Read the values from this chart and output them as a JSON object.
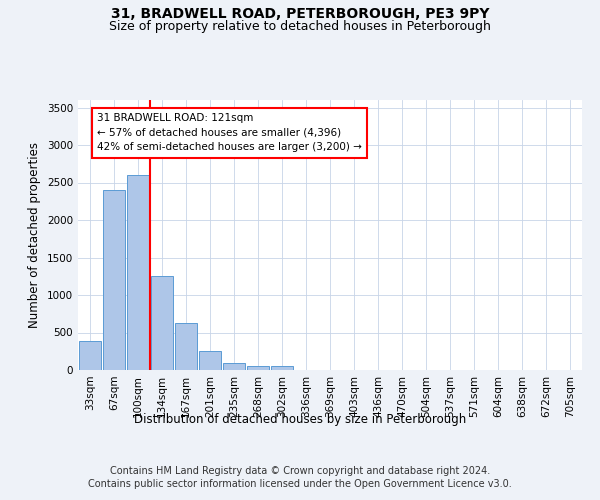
{
  "title": "31, BRADWELL ROAD, PETERBOROUGH, PE3 9PY",
  "subtitle": "Size of property relative to detached houses in Peterborough",
  "xlabel": "Distribution of detached houses by size in Peterborough",
  "ylabel": "Number of detached properties",
  "footer_line1": "Contains HM Land Registry data © Crown copyright and database right 2024.",
  "footer_line2": "Contains public sector information licensed under the Open Government Licence v3.0.",
  "categories": [
    "33sqm",
    "67sqm",
    "100sqm",
    "134sqm",
    "167sqm",
    "201sqm",
    "235sqm",
    "268sqm",
    "302sqm",
    "336sqm",
    "369sqm",
    "403sqm",
    "436sqm",
    "470sqm",
    "504sqm",
    "537sqm",
    "571sqm",
    "604sqm",
    "638sqm",
    "672sqm",
    "705sqm"
  ],
  "bar_values": [
    390,
    2400,
    2600,
    1250,
    630,
    250,
    100,
    55,
    55,
    0,
    0,
    0,
    0,
    0,
    0,
    0,
    0,
    0,
    0,
    0,
    0
  ],
  "bar_color": "#aec6e8",
  "bar_edge_color": "#5b9bd5",
  "vline_x_index": 2.5,
  "vline_color": "red",
  "annotation_line1": "31 BRADWELL ROAD: 121sqm",
  "annotation_line2": "← 57% of detached houses are smaller (4,396)",
  "annotation_line3": "42% of semi-detached houses are larger (3,200) →",
  "ylim": [
    0,
    3600
  ],
  "yticks": [
    0,
    500,
    1000,
    1500,
    2000,
    2500,
    3000,
    3500
  ],
  "bg_color": "#eef2f8",
  "plot_bg_color": "#ffffff",
  "grid_color": "#c8d4e8",
  "title_fontsize": 10,
  "subtitle_fontsize": 9,
  "axis_label_fontsize": 8.5,
  "tick_fontsize": 7.5,
  "footer_fontsize": 7
}
